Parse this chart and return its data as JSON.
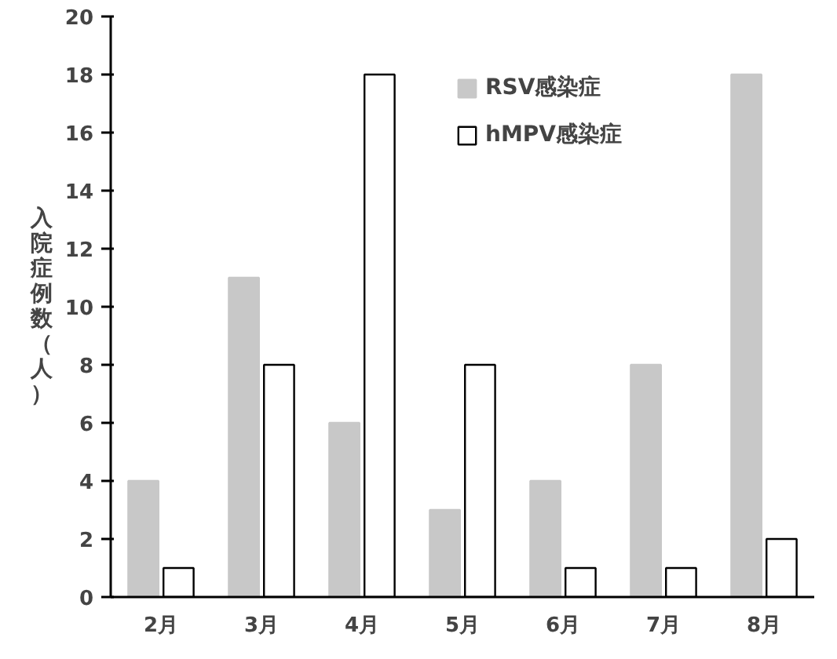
{
  "chart_data": {
    "type": "bar",
    "ylabel": "入院症例数（人）",
    "categories": [
      "2月",
      "3月",
      "4月",
      "5月",
      "6月",
      "7月",
      "8月"
    ],
    "series": [
      {
        "name": "RSV感染症",
        "color": "#c8c8c8",
        "values": [
          4,
          11,
          6,
          3,
          4,
          8,
          18
        ]
      },
      {
        "name": "hMPV感染症",
        "color": "#ffffff",
        "values": [
          1,
          8,
          18,
          8,
          1,
          1,
          2
        ]
      }
    ],
    "ylim": [
      0,
      20
    ],
    "yticks": [
      0,
      2,
      4,
      6,
      8,
      10,
      12,
      14,
      16,
      18,
      20
    ],
    "grid": false,
    "legend": "top right"
  }
}
